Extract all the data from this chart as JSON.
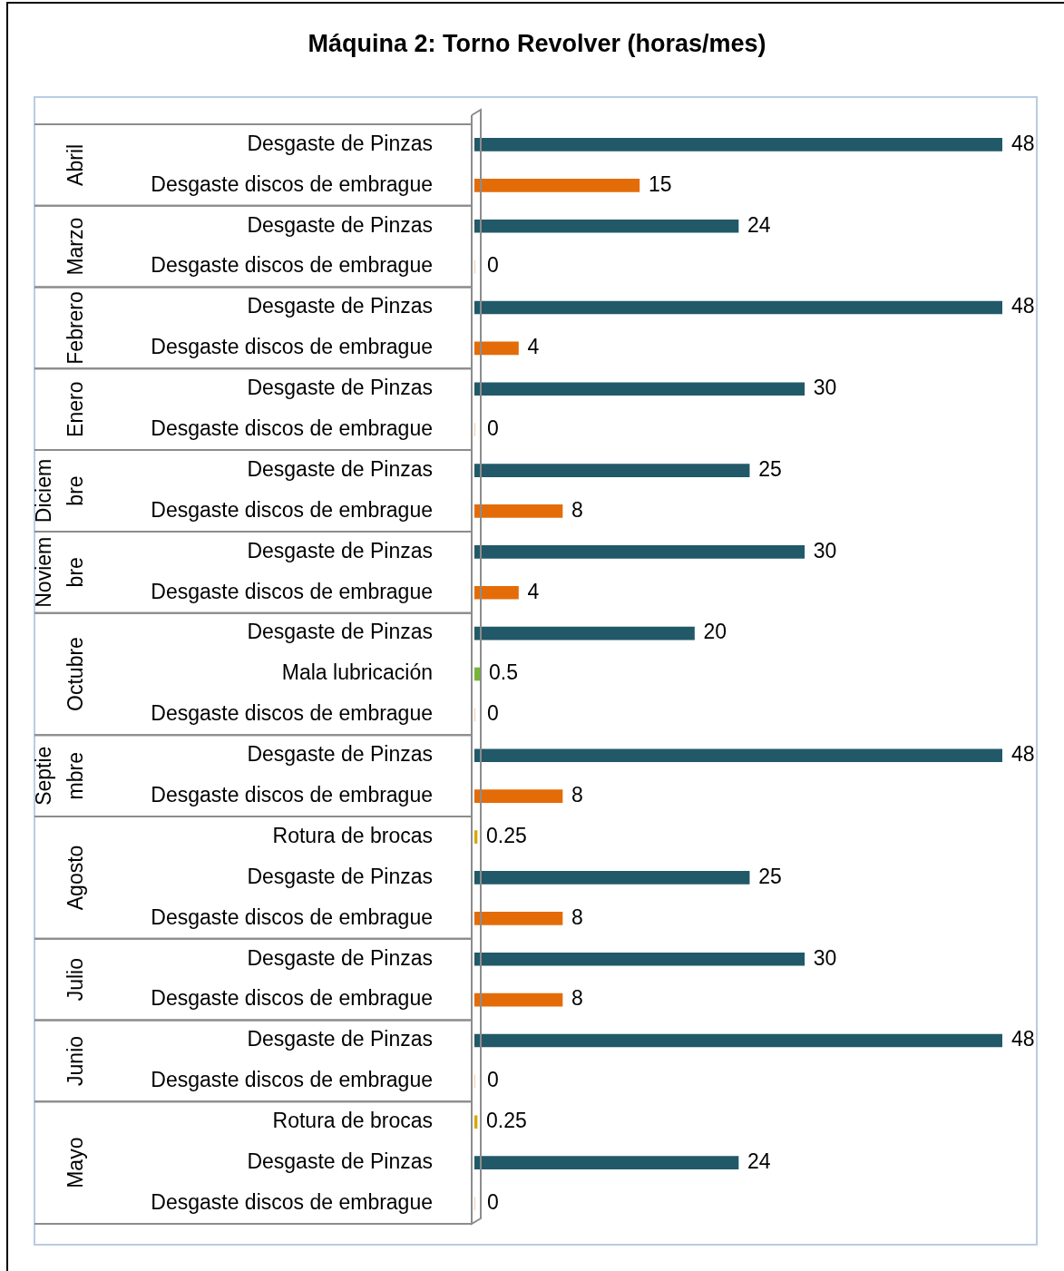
{
  "chart_data": {
    "type": "bar",
    "orientation": "horizontal",
    "title": "Máquina 2: Torno Revolver (horas/mes)",
    "data_labels": true,
    "annotations": [
      "Abril",
      "Marzo",
      "Febrero",
      "Enero",
      "Diciembre",
      "Noviembre",
      "Octubre",
      "Septiembre",
      "Agosto",
      "Julio",
      "Junio",
      "Mayo"
    ],
    "legend": false,
    "grid": false,
    "categories": [
      "Desgaste de Pinzas",
      "Desgaste discos de embrague",
      "Desgaste de Pinzas",
      "Desgaste discos de embrague",
      "Desgaste de Pinzas",
      "Desgaste discos de embrague",
      "Desgaste de Pinzas",
      "Desgaste discos de embrague",
      "Desgaste de Pinzas",
      "Desgaste discos de embrague",
      "Desgaste de Pinzas",
      "Desgaste discos de embrague",
      "Desgaste de Pinzas",
      "Mala lubricación",
      "Desgaste discos de embrague",
      "Desgaste de Pinzas",
      "Desgaste discos de embrague",
      "Rotura de brocas",
      "Desgaste de Pinzas",
      "Desgaste discos de embrague",
      "Desgaste de Pinzas",
      "Desgaste discos de embrague",
      "Desgaste de Pinzas",
      "Desgaste discos de embrague",
      "Rotura de brocas",
      "Desgaste de Pinzas",
      "Desgaste discos de embrague"
    ],
    "series": [
      {
        "values": [
          48,
          15,
          null,
          null,
          null,
          null,
          null,
          null,
          null,
          null,
          null,
          null,
          null,
          null,
          null,
          null,
          null,
          null,
          null,
          null,
          null,
          null,
          null,
          null,
          null,
          null,
          null
        ],
        "colors": [
          "#215968",
          "#e36c09",
          null,
          null,
          null,
          null,
          null,
          null,
          null,
          null,
          null,
          null,
          null,
          null,
          null,
          null,
          null,
          null,
          null,
          null,
          null,
          null,
          null,
          null,
          null,
          null,
          null
        ]
      },
      {
        "values": [
          null,
          null,
          24,
          0,
          null,
          null,
          null,
          null,
          null,
          null,
          null,
          null,
          null,
          null,
          null,
          null,
          null,
          null,
          null,
          null,
          null,
          null,
          null,
          null,
          null,
          null,
          null
        ],
        "colors": [
          null,
          null,
          "#215968",
          "#e36c09",
          null,
          null,
          null,
          null,
          null,
          null,
          null,
          null,
          null,
          null,
          null,
          null,
          null,
          null,
          null,
          null,
          null,
          null,
          null,
          null,
          null,
          null,
          null
        ]
      },
      {
        "values": [
          null,
          null,
          null,
          null,
          48,
          4,
          null,
          null,
          null,
          null,
          null,
          null,
          null,
          null,
          null,
          null,
          null,
          null,
          null,
          null,
          null,
          null,
          null,
          null,
          null,
          null,
          null
        ],
        "colors": [
          null,
          null,
          null,
          null,
          "#215968",
          "#e36c09",
          null,
          null,
          null,
          null,
          null,
          null,
          null,
          null,
          null,
          null,
          null,
          null,
          null,
          null,
          null,
          null,
          null,
          null,
          null,
          null,
          null
        ]
      },
      {
        "values": [
          null,
          null,
          null,
          null,
          null,
          null,
          30,
          0,
          null,
          null,
          null,
          null,
          null,
          null,
          null,
          null,
          null,
          null,
          null,
          null,
          null,
          null,
          null,
          null,
          null,
          null,
          null
        ],
        "colors": [
          null,
          null,
          null,
          null,
          null,
          null,
          "#215968",
          "#e36c09",
          null,
          null,
          null,
          null,
          null,
          null,
          null,
          null,
          null,
          null,
          null,
          null,
          null,
          null,
          null,
          null,
          null,
          null,
          null
        ]
      },
      {
        "values": [
          null,
          null,
          null,
          null,
          null,
          null,
          null,
          null,
          25,
          8,
          null,
          null,
          null,
          null,
          null,
          null,
          null,
          null,
          null,
          null,
          null,
          null,
          null,
          null,
          null,
          null,
          null
        ],
        "colors": [
          null,
          null,
          null,
          null,
          null,
          null,
          null,
          null,
          "#215968",
          "#e36c09",
          null,
          null,
          null,
          null,
          null,
          null,
          null,
          null,
          null,
          null,
          null,
          null,
          null,
          null,
          null,
          null,
          null
        ]
      },
      {
        "values": [
          null,
          null,
          null,
          null,
          null,
          null,
          null,
          null,
          null,
          null,
          30,
          4,
          null,
          null,
          null,
          null,
          null,
          null,
          null,
          null,
          null,
          null,
          null,
          null,
          null,
          null,
          null
        ],
        "colors": [
          null,
          null,
          null,
          null,
          null,
          null,
          null,
          null,
          null,
          null,
          "#215968",
          "#e36c09",
          null,
          null,
          null,
          null,
          null,
          null,
          null,
          null,
          null,
          null,
          null,
          null,
          null,
          null,
          null
        ]
      },
      {
        "values": [
          null,
          null,
          null,
          null,
          null,
          null,
          null,
          null,
          null,
          null,
          null,
          null,
          20,
          0.5,
          0,
          null,
          null,
          null,
          null,
          null,
          null,
          null,
          null,
          null,
          null,
          null,
          null
        ],
        "colors": [
          null,
          null,
          null,
          null,
          null,
          null,
          null,
          null,
          null,
          null,
          null,
          null,
          "#215968",
          "#77b538",
          "#e36c09",
          null,
          null,
          null,
          null,
          null,
          null,
          null,
          null,
          null,
          null,
          null,
          null
        ]
      },
      {
        "values": [
          null,
          null,
          null,
          null,
          null,
          null,
          null,
          null,
          null,
          null,
          null,
          null,
          null,
          null,
          null,
          48,
          8,
          null,
          null,
          null,
          null,
          null,
          null,
          null,
          null,
          null,
          null
        ],
        "colors": [
          null,
          null,
          null,
          null,
          null,
          null,
          null,
          null,
          null,
          null,
          null,
          null,
          null,
          null,
          null,
          "#215968",
          "#e36c09",
          null,
          null,
          null,
          null,
          null,
          null,
          null,
          null,
          null,
          null
        ]
      },
      {
        "values": [
          null,
          null,
          null,
          null,
          null,
          null,
          null,
          null,
          null,
          null,
          null,
          null,
          null,
          null,
          null,
          null,
          null,
          0.25,
          25,
          8,
          null,
          null,
          null,
          null,
          null,
          null,
          null
        ],
        "colors": [
          null,
          null,
          null,
          null,
          null,
          null,
          null,
          null,
          null,
          null,
          null,
          null,
          null,
          null,
          null,
          null,
          null,
          "#d6a700",
          "#215968",
          "#e36c09",
          null,
          null,
          null,
          null,
          null,
          null,
          null
        ]
      },
      {
        "values": [
          null,
          null,
          null,
          null,
          null,
          null,
          null,
          null,
          null,
          null,
          null,
          null,
          null,
          null,
          null,
          null,
          null,
          null,
          null,
          null,
          30,
          8,
          null,
          null,
          null,
          null,
          null
        ],
        "colors": [
          null,
          null,
          null,
          null,
          null,
          null,
          null,
          null,
          null,
          null,
          null,
          null,
          null,
          null,
          null,
          null,
          null,
          null,
          null,
          null,
          "#215968",
          "#e36c09",
          null,
          null,
          null,
          null,
          null
        ]
      },
      {
        "values": [
          null,
          null,
          null,
          null,
          null,
          null,
          null,
          null,
          null,
          null,
          null,
          null,
          null,
          null,
          null,
          null,
          null,
          null,
          null,
          null,
          null,
          null,
          48,
          0,
          null,
          null,
          null
        ],
        "colors": [
          null,
          null,
          null,
          null,
          null,
          null,
          null,
          null,
          null,
          null,
          null,
          null,
          null,
          null,
          null,
          null,
          null,
          null,
          null,
          null,
          null,
          null,
          "#215968",
          "#e36c09",
          null,
          null,
          null
        ]
      },
      {
        "values": [
          null,
          null,
          null,
          null,
          null,
          null,
          null,
          null,
          null,
          null,
          null,
          null,
          null,
          null,
          null,
          null,
          null,
          null,
          null,
          null,
          null,
          null,
          null,
          null,
          0.25,
          24,
          0
        ],
        "colors": [
          null,
          null,
          null,
          null,
          null,
          null,
          null,
          null,
          null,
          null,
          null,
          null,
          null,
          null,
          null,
          null,
          null,
          null,
          null,
          null,
          null,
          null,
          null,
          null,
          "#d6a700",
          "#215968",
          "#e36c09"
        ]
      }
    ]
  }
}
